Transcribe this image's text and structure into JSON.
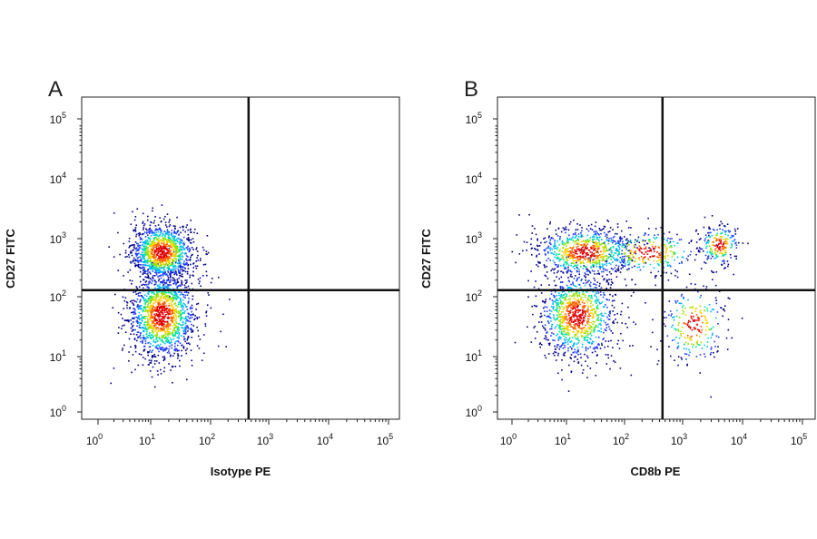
{
  "chart_data": [
    {
      "type": "scatter",
      "subtype": "flow-cytometry-density-dot-plot",
      "panel_label": "A",
      "xlabel": "Isotype PE",
      "ylabel": "CD27 FITC",
      "x_scale": "log",
      "y_scale": "log",
      "xlim": [
        1,
        100000
      ],
      "ylim": [
        1,
        100000
      ],
      "x_ticks": [
        {
          "base": "10",
          "exp": "0"
        },
        {
          "base": "10",
          "exp": "1"
        },
        {
          "base": "10",
          "exp": "2"
        },
        {
          "base": "10",
          "exp": "3"
        },
        {
          "base": "10",
          "exp": "4"
        },
        {
          "base": "10",
          "exp": "5"
        }
      ],
      "y_ticks": [
        {
          "base": "10",
          "exp": "0"
        },
        {
          "base": "10",
          "exp": "1"
        },
        {
          "base": "10",
          "exp": "2"
        },
        {
          "base": "10",
          "exp": "3"
        },
        {
          "base": "10",
          "exp": "4"
        },
        {
          "base": "10",
          "exp": "5"
        }
      ],
      "quadrant_gate": {
        "x": 450,
        "y": 130
      },
      "grid": false,
      "populations": [
        {
          "x_center": 15,
          "y_center": 600,
          "x_spread_decades": 0.28,
          "y_spread_decades": 0.25,
          "weight": 0.45
        },
        {
          "x_center": 15,
          "y_center": 50,
          "x_spread_decades": 0.3,
          "y_spread_decades": 0.38,
          "weight": 0.55
        }
      ],
      "density_colors": [
        "#00008b",
        "#1e3cff",
        "#00b4ff",
        "#00e0a0",
        "#9be000",
        "#ffd000",
        "#ff6000",
        "#e00000"
      ]
    },
    {
      "type": "scatter",
      "subtype": "flow-cytometry-density-dot-plot",
      "panel_label": "B",
      "xlabel": "CD8b PE",
      "ylabel": "CD27 FITC",
      "x_scale": "log",
      "y_scale": "log",
      "xlim": [
        1,
        100000
      ],
      "ylim": [
        1,
        100000
      ],
      "x_ticks": [
        {
          "base": "10",
          "exp": "0"
        },
        {
          "base": "10",
          "exp": "1"
        },
        {
          "base": "10",
          "exp": "2"
        },
        {
          "base": "10",
          "exp": "3"
        },
        {
          "base": "10",
          "exp": "4"
        },
        {
          "base": "10",
          "exp": "5"
        }
      ],
      "y_ticks": [
        {
          "base": "10",
          "exp": "0"
        },
        {
          "base": "10",
          "exp": "1"
        },
        {
          "base": "10",
          "exp": "2"
        },
        {
          "base": "10",
          "exp": "3"
        },
        {
          "base": "10",
          "exp": "4"
        },
        {
          "base": "10",
          "exp": "5"
        }
      ],
      "quadrant_gate": {
        "x": 450,
        "y": 130
      },
      "grid": false,
      "populations": [
        {
          "x_center": 20,
          "y_center": 600,
          "x_spread_decades": 0.45,
          "y_spread_decades": 0.22,
          "weight": 0.3
        },
        {
          "x_center": 15,
          "y_center": 50,
          "x_spread_decades": 0.35,
          "y_spread_decades": 0.38,
          "weight": 0.4
        },
        {
          "x_center": 4000,
          "y_center": 800,
          "x_spread_decades": 0.18,
          "y_spread_decades": 0.18,
          "weight": 0.08
        },
        {
          "x_center": 1500,
          "y_center": 35,
          "x_spread_decades": 0.28,
          "y_spread_decades": 0.35,
          "weight": 0.1
        },
        {
          "x_center": 250,
          "y_center": 600,
          "x_spread_decades": 0.45,
          "y_spread_decades": 0.2,
          "weight": 0.12
        }
      ],
      "density_colors": [
        "#00008b",
        "#1e3cff",
        "#00b4ff",
        "#00e0a0",
        "#9be000",
        "#ffd000",
        "#ff6000",
        "#e00000"
      ]
    }
  ]
}
